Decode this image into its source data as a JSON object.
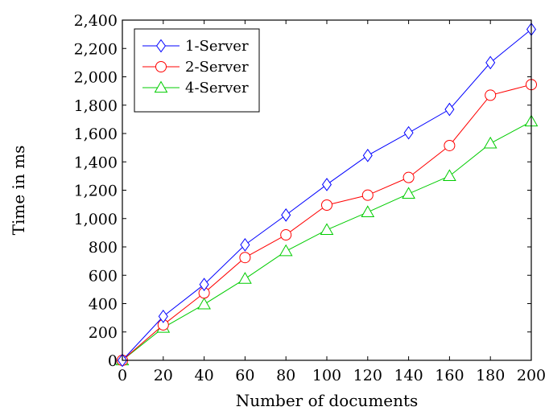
{
  "chart_data": {
    "type": "line",
    "xlabel": "Number of documents",
    "ylabel": "Time in ms",
    "xlim": [
      0,
      200
    ],
    "ylim": [
      0,
      2400
    ],
    "x": [
      0,
      20,
      40,
      60,
      80,
      100,
      120,
      140,
      160,
      180,
      200
    ],
    "x_tick_labels": [
      "0",
      "20",
      "40",
      "60",
      "80",
      "100",
      "120",
      "140",
      "160",
      "180",
      "200"
    ],
    "y_ticks": [
      0,
      200,
      400,
      600,
      800,
      1000,
      1200,
      1400,
      1600,
      1800,
      2000,
      2200,
      2400
    ],
    "y_tick_labels": [
      "0",
      "200",
      "400",
      "600",
      "800",
      "1,000",
      "1,200",
      "1,400",
      "1,600",
      "1,800",
      "2,000",
      "2,200",
      "2,400"
    ],
    "grid": false,
    "legend_position": "top-left",
    "series": [
      {
        "name": "1-Server",
        "color": "#0000ff",
        "marker": "diamond",
        "values": [
          0,
          310,
          535,
          815,
          1025,
          1240,
          1445,
          1605,
          1770,
          2100,
          2335
        ]
      },
      {
        "name": "2-Server",
        "color": "#ff0000",
        "marker": "circle",
        "values": [
          0,
          250,
          475,
          725,
          885,
          1095,
          1165,
          1290,
          1515,
          1870,
          1945
        ]
      },
      {
        "name": "4-Server",
        "color": "#00cc00",
        "marker": "triangle",
        "values": [
          0,
          230,
          395,
          575,
          770,
          920,
          1045,
          1175,
          1300,
          1530,
          1685
        ]
      }
    ]
  }
}
